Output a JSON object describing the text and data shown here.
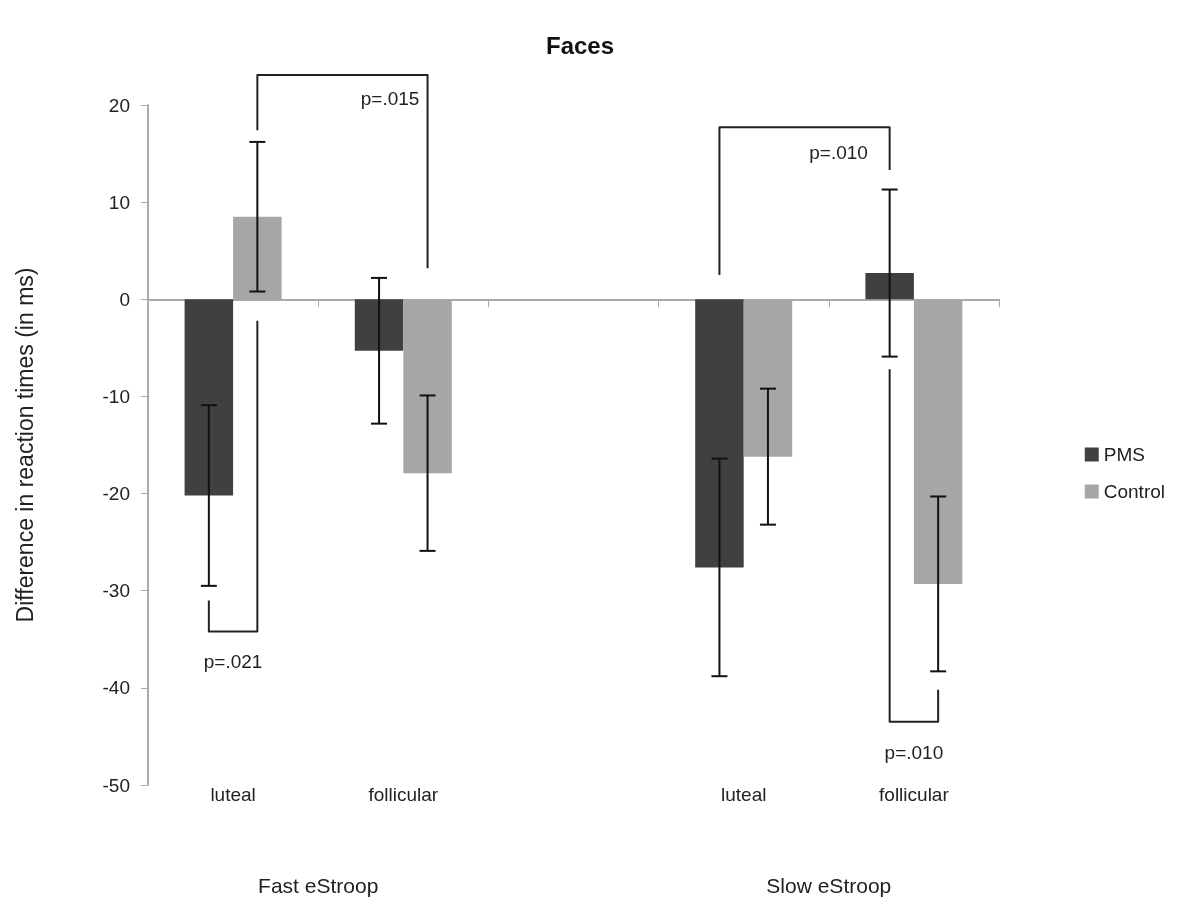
{
  "chart_data": {
    "type": "bar",
    "title": "Faces",
    "ylabel": "Difference in reaction times (in ms)",
    "categories": [
      "luteal",
      "follicular",
      null,
      "luteal",
      "follicular"
    ],
    "series": [
      {
        "name": "PMS",
        "color": "#404040",
        "values": [
          -20.2,
          -5.3,
          null,
          -27.6,
          2.7
        ],
        "errors": [
          9.3,
          7.5,
          null,
          11.2,
          8.6
        ]
      },
      {
        "name": "Control",
        "color": "#a6a6a6",
        "values": [
          8.5,
          -17.9,
          null,
          -16.2,
          -29.3
        ],
        "errors": [
          7.7,
          8.0,
          null,
          7.0,
          9.0
        ]
      }
    ],
    "ylim": [
      -50,
      20
    ],
    "yticks": [
      -50,
      -40,
      -30,
      -20,
      -10,
      0,
      10,
      20
    ],
    "legend": "right",
    "annotations": [
      "p=.015",
      "p=.021",
      "p=.010",
      "p=.010",
      "Fast eStroop",
      "Slow eStroop"
    ]
  }
}
